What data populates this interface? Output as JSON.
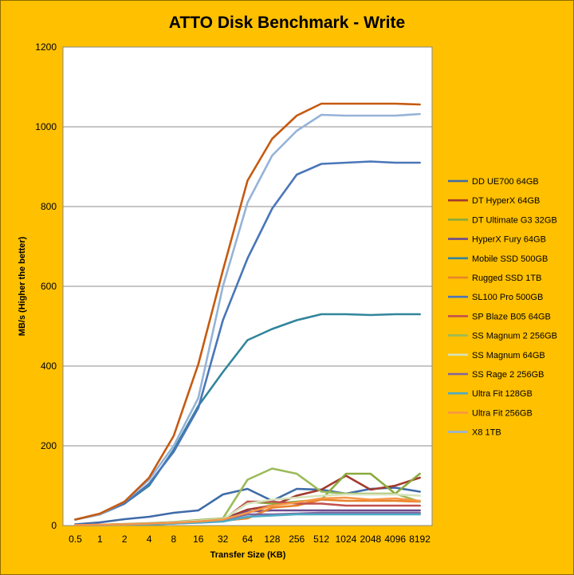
{
  "chart_data": {
    "type": "line",
    "title": "ATTO Disk Benchmark - Write",
    "xlabel": "Transfer Size (KB)",
    "ylabel": "MB/s (Higher the better)",
    "ylim": [
      0,
      1200
    ],
    "yticks": [
      "0",
      "200",
      "400",
      "600",
      "800",
      "1000",
      "1200"
    ],
    "grid": "horizontal",
    "legend": "right",
    "categories": [
      "0.5",
      "1",
      "2",
      "4",
      "8",
      "16",
      "32",
      "64",
      "128",
      "256",
      "512",
      "1024",
      "2048",
      "4096",
      "8192"
    ],
    "series": [
      {
        "name": "DD UE700 64GB",
        "color": "#3E6BA8",
        "values": [
          3,
          8,
          16,
          22,
          32,
          38,
          78,
          92,
          62,
          92,
          90,
          80,
          92,
          95,
          85
        ]
      },
      {
        "name": "DT HyperX 64GB",
        "color": "#A23A2E",
        "values": [
          1,
          2,
          3,
          5,
          8,
          12,
          16,
          40,
          50,
          75,
          90,
          125,
          90,
          100,
          120
        ]
      },
      {
        "name": "DT Ultimate G3 32GB",
        "color": "#8AAA3C",
        "values": [
          1,
          1,
          2,
          3,
          5,
          8,
          12,
          60,
          55,
          60,
          65,
          130,
          130,
          80,
          130
        ]
      },
      {
        "name": "HyperX Fury 64GB",
        "color": "#6E4A8E",
        "values": [
          1,
          2,
          3,
          5,
          7,
          10,
          15,
          35,
          38,
          38,
          38,
          38,
          38,
          38,
          38
        ]
      },
      {
        "name": "Mobile SSD 500GB",
        "color": "#31859C",
        "values": [
          15,
          28,
          55,
          100,
          190,
          300,
          385,
          465,
          493,
          515,
          530,
          530,
          528,
          530,
          530
        ]
      },
      {
        "name": "Rugged SSD 1TB",
        "color": "#E8832A",
        "values": [
          1,
          1,
          2,
          3,
          5,
          8,
          12,
          18,
          45,
          50,
          65,
          62,
          62,
          62,
          60
        ]
      },
      {
        "name": "SL100 Pro 500GB",
        "color": "#4A76B8",
        "values": [
          15,
          28,
          55,
          105,
          185,
          295,
          515,
          670,
          795,
          880,
          907,
          910,
          913,
          910,
          910
        ]
      },
      {
        "name": "SP Blaze B05 64GB",
        "color": "#C0504D",
        "values": [
          1,
          2,
          3,
          4,
          6,
          10,
          14,
          60,
          60,
          55,
          55,
          50,
          50,
          50,
          50
        ]
      },
      {
        "name": "SS Magnum 2 256GB",
        "color": "#9BBB59",
        "values": [
          1,
          2,
          4,
          6,
          9,
          14,
          18,
          115,
          143,
          130,
          85,
          80,
          80,
          80,
          60
        ]
      },
      {
        "name": "SS Magnum 64GB",
        "color": "#D6E3BC",
        "values": [
          1,
          2,
          3,
          5,
          8,
          12,
          16,
          55,
          65,
          70,
          75,
          78,
          78,
          78,
          75
        ]
      },
      {
        "name": "SS Rage 2 256GB",
        "color": "#8064A2",
        "values": [
          1,
          2,
          3,
          5,
          7,
          10,
          14,
          28,
          28,
          30,
          32,
          32,
          32,
          32,
          32
        ]
      },
      {
        "name": "Ultra Fit 128GB",
        "color": "#4BACC6",
        "values": [
          1,
          1,
          2,
          3,
          5,
          7,
          10,
          22,
          25,
          28,
          28,
          28,
          28,
          28,
          28
        ]
      },
      {
        "name": "Ultra Fit 256GB",
        "color": "#F79646",
        "values": [
          1,
          2,
          3,
          5,
          7,
          10,
          15,
          32,
          50,
          58,
          68,
          70,
          65,
          68,
          62
        ]
      },
      {
        "name": "X8 1TB",
        "color": "#95B3D7",
        "values": [
          15,
          28,
          60,
          115,
          200,
          320,
          600,
          810,
          928,
          990,
          1030,
          1028,
          1028,
          1028,
          1032
        ]
      },
      {
        "name": "",
        "color": "#C55A11",
        "values": [
          15,
          30,
          60,
          120,
          225,
          405,
          640,
          865,
          970,
          1028,
          1058,
          1058,
          1058,
          1058,
          1056
        ]
      }
    ]
  }
}
